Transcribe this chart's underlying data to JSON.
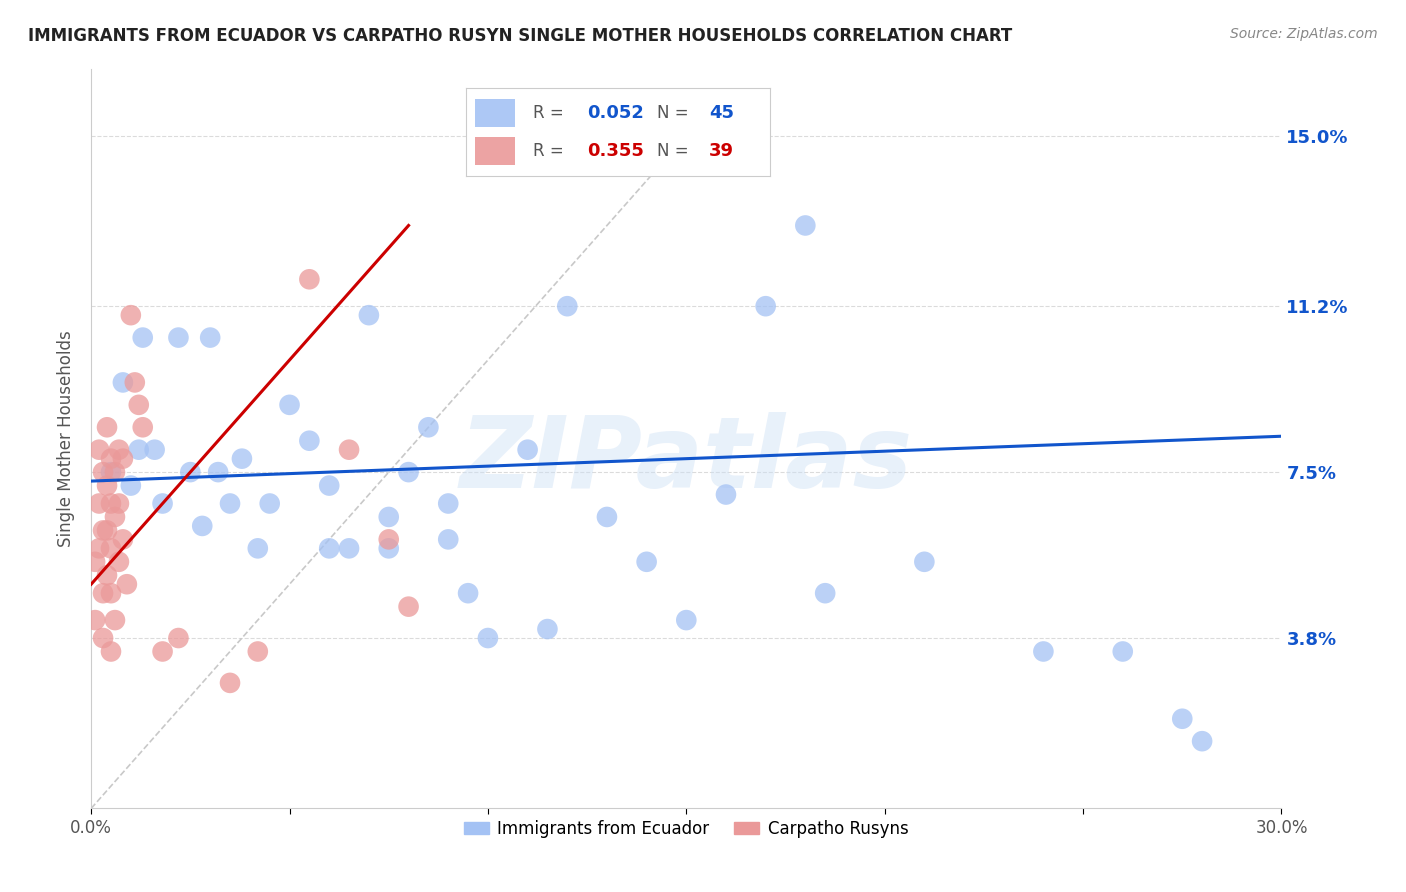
{
  "title": "IMMIGRANTS FROM ECUADOR VS CARPATHO RUSYN SINGLE MOTHER HOUSEHOLDS CORRELATION CHART",
  "source": "Source: ZipAtlas.com",
  "ylabel": "Single Mother Households",
  "watermark": "ZIPatlas",
  "xlim": [
    0.0,
    0.3
  ],
  "ylim": [
    0.0,
    0.165
  ],
  "xticks": [
    0.0,
    0.05,
    0.1,
    0.15,
    0.2,
    0.25,
    0.3
  ],
  "xtick_labels": [
    "0.0%",
    "",
    "",
    "",
    "",
    "",
    "30.0%"
  ],
  "ytick_positions": [
    0.038,
    0.075,
    0.112,
    0.15
  ],
  "ytick_labels": [
    "3.8%",
    "7.5%",
    "11.2%",
    "15.0%"
  ],
  "blue_color": "#a4c2f4",
  "pink_color": "#ea9999",
  "blue_line_color": "#1155cc",
  "pink_line_color": "#cc0000",
  "grid_color": "#cccccc",
  "bg_color": "#ffffff",
  "title_color": "#222222",
  "right_tick_color": "#1155cc",
  "blue_scatter_x": [
    0.005,
    0.008,
    0.01,
    0.012,
    0.013,
    0.016,
    0.018,
    0.022,
    0.025,
    0.028,
    0.03,
    0.032,
    0.035,
    0.038,
    0.042,
    0.045,
    0.05,
    0.055,
    0.06,
    0.065,
    0.07,
    0.075,
    0.08,
    0.085,
    0.09,
    0.095,
    0.1,
    0.11,
    0.115,
    0.12,
    0.13,
    0.14,
    0.15,
    0.16,
    0.17,
    0.185,
    0.21,
    0.24,
    0.26,
    0.275,
    0.28,
    0.06,
    0.075,
    0.09,
    0.18
  ],
  "blue_scatter_y": [
    0.075,
    0.095,
    0.072,
    0.08,
    0.105,
    0.08,
    0.068,
    0.105,
    0.075,
    0.063,
    0.105,
    0.075,
    0.068,
    0.078,
    0.058,
    0.068,
    0.09,
    0.082,
    0.072,
    0.058,
    0.11,
    0.065,
    0.075,
    0.085,
    0.06,
    0.048,
    0.038,
    0.08,
    0.04,
    0.112,
    0.065,
    0.055,
    0.042,
    0.07,
    0.112,
    0.048,
    0.055,
    0.035,
    0.035,
    0.02,
    0.015,
    0.058,
    0.058,
    0.068,
    0.13
  ],
  "pink_scatter_x": [
    0.001,
    0.001,
    0.002,
    0.002,
    0.002,
    0.003,
    0.003,
    0.003,
    0.003,
    0.004,
    0.004,
    0.004,
    0.004,
    0.005,
    0.005,
    0.005,
    0.005,
    0.005,
    0.006,
    0.006,
    0.006,
    0.007,
    0.007,
    0.007,
    0.008,
    0.008,
    0.009,
    0.01,
    0.011,
    0.012,
    0.013,
    0.018,
    0.022,
    0.035,
    0.042,
    0.055,
    0.065,
    0.075,
    0.08
  ],
  "pink_scatter_y": [
    0.055,
    0.042,
    0.08,
    0.068,
    0.058,
    0.075,
    0.062,
    0.048,
    0.038,
    0.085,
    0.072,
    0.062,
    0.052,
    0.078,
    0.068,
    0.058,
    0.048,
    0.035,
    0.075,
    0.065,
    0.042,
    0.08,
    0.068,
    0.055,
    0.078,
    0.06,
    0.05,
    0.11,
    0.095,
    0.09,
    0.085,
    0.035,
    0.038,
    0.028,
    0.035,
    0.118,
    0.08,
    0.06,
    0.045
  ],
  "blue_trend_x0": 0.0,
  "blue_trend_y0": 0.073,
  "blue_trend_x1": 0.3,
  "blue_trend_y1": 0.083,
  "pink_trend_x0": 0.0,
  "pink_trend_y0": 0.05,
  "pink_trend_x1": 0.08,
  "pink_trend_y1": 0.13,
  "ref_line_x0": 0.0,
  "ref_line_y0": 0.0,
  "ref_line_x1": 0.155,
  "ref_line_y1": 0.155
}
